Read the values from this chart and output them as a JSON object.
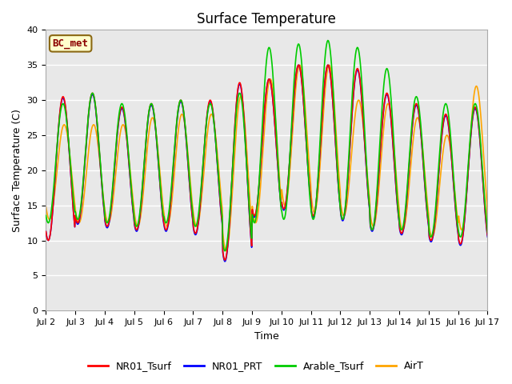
{
  "title": "Surface Temperature",
  "xlabel": "Time",
  "ylabel": "Surface Temperature (C)",
  "annotation": "BC_met",
  "ylim": [
    0,
    40
  ],
  "yticks": [
    0,
    5,
    10,
    15,
    20,
    25,
    30,
    35,
    40
  ],
  "xtick_labels": [
    "Jul 2",
    "Jul 3",
    "Jul 4",
    "Jul 5",
    "Jul 6",
    "Jul 7",
    "Jul 8",
    "Jul 9",
    "Jul 10",
    "Jul 11",
    "Jul 12",
    "Jul 13",
    "Jul 14",
    "Jul 15",
    "Jul 16",
    "Jul 17"
  ],
  "series": {
    "NR01_Tsurf": {
      "color": "#ff0000",
      "lw": 1.2
    },
    "NR01_PRT": {
      "color": "#0000ff",
      "lw": 1.2
    },
    "Arable_Tsurf": {
      "color": "#00cc00",
      "lw": 1.2
    },
    "AirT": {
      "color": "#ffa500",
      "lw": 1.2
    }
  },
  "plot_bg_color": "#e8e8e8",
  "grid_color": "#ffffff",
  "title_fontsize": 12,
  "axis_label_fontsize": 9,
  "tick_fontsize": 8,
  "legend_fontsize": 9,
  "annotation_fontsize": 9,
  "peaks_nr01": [
    30.5,
    31.0,
    29.0,
    29.5,
    30.0,
    30.0,
    32.5,
    33.0,
    35.0,
    35.0,
    34.5,
    31.0,
    29.5,
    28.0,
    29.0,
    29.0
  ],
  "lows_nr01": [
    10.0,
    12.5,
    12.0,
    11.5,
    11.5,
    11.0,
    7.2,
    13.5,
    14.5,
    13.5,
    13.0,
    11.5,
    11.0,
    10.0,
    9.5,
    9.5
  ],
  "peaks_prt": [
    30.3,
    30.8,
    28.8,
    29.3,
    29.8,
    29.8,
    32.3,
    33.0,
    35.0,
    35.0,
    34.3,
    30.8,
    29.3,
    27.8,
    28.8,
    28.8
  ],
  "lows_prt": [
    10.0,
    12.3,
    11.8,
    11.3,
    11.3,
    10.8,
    7.0,
    13.3,
    14.3,
    13.3,
    12.8,
    11.3,
    10.8,
    9.8,
    9.3,
    9.3
  ],
  "peaks_ara": [
    29.5,
    31.0,
    29.5,
    29.5,
    30.0,
    29.5,
    31.0,
    37.5,
    38.0,
    38.5,
    37.5,
    34.5,
    30.5,
    29.5,
    29.5,
    28.5
  ],
  "lows_ara": [
    12.5,
    13.0,
    12.5,
    12.0,
    12.5,
    12.0,
    8.5,
    12.5,
    13.0,
    13.0,
    13.0,
    11.5,
    11.5,
    10.5,
    10.5,
    10.0
  ],
  "peaks_air": [
    26.5,
    26.5,
    26.5,
    27.5,
    28.0,
    28.0,
    30.5,
    33.0,
    35.0,
    35.0,
    30.0,
    29.5,
    27.5,
    25.0,
    32.0,
    28.5
  ],
  "lows_air": [
    13.0,
    12.5,
    12.5,
    12.0,
    12.0,
    12.0,
    8.5,
    12.5,
    15.0,
    14.0,
    13.5,
    12.0,
    11.5,
    10.5,
    11.5,
    10.0
  ]
}
